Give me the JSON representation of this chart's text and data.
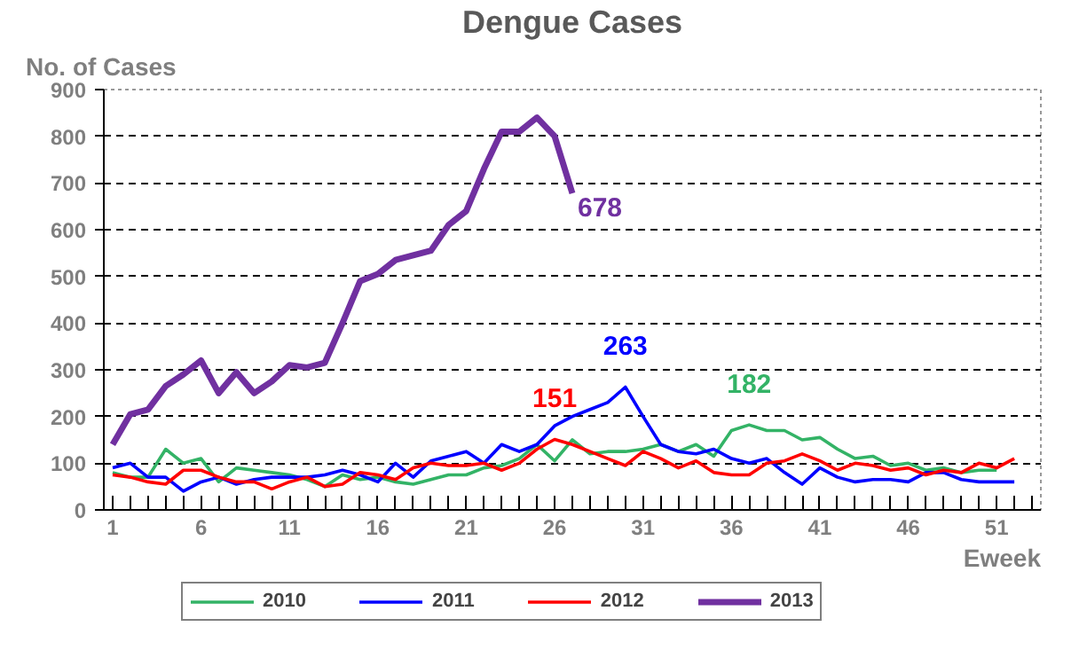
{
  "chart_data": {
    "type": "line",
    "title": "Dengue Cases",
    "ylabel": "No. of Cases",
    "xlabel": "Eweek",
    "x": [
      1,
      2,
      3,
      4,
      5,
      6,
      7,
      8,
      9,
      10,
      11,
      12,
      13,
      14,
      15,
      16,
      17,
      18,
      19,
      20,
      21,
      22,
      23,
      24,
      25,
      26,
      27,
      28,
      29,
      30,
      31,
      32,
      33,
      34,
      35,
      36,
      37,
      38,
      39,
      40,
      41,
      42,
      43,
      44,
      45,
      46,
      47,
      48,
      49,
      50,
      51,
      52
    ],
    "xlim": [
      0.5,
      53.5
    ],
    "xticks": [
      1,
      {
        "value": 2,
        "label": null
      },
      {
        "value": 3,
        "label": null
      },
      {
        "value": 4,
        "label": null
      },
      {
        "value": 5,
        "label": null
      },
      6,
      {
        "value": 7,
        "label": null
      },
      {
        "value": 8,
        "label": null
      },
      {
        "value": 9,
        "label": null
      },
      {
        "value": 10,
        "label": null
      },
      11,
      {
        "value": 12,
        "label": null
      },
      {
        "value": 13,
        "label": null
      },
      {
        "value": 14,
        "label": null
      },
      {
        "value": 15,
        "label": null
      },
      16,
      {
        "value": 17,
        "label": null
      },
      {
        "value": 18,
        "label": null
      },
      {
        "value": 19,
        "label": null
      },
      {
        "value": 20,
        "label": null
      },
      21,
      {
        "value": 22,
        "label": null
      },
      {
        "value": 23,
        "label": null
      },
      {
        "value": 24,
        "label": null
      },
      {
        "value": 25,
        "label": null
      },
      26,
      {
        "value": 27,
        "label": null
      },
      {
        "value": 28,
        "label": null
      },
      {
        "value": 29,
        "label": null
      },
      {
        "value": 30,
        "label": null
      },
      31,
      {
        "value": 32,
        "label": null
      },
      {
        "value": 33,
        "label": null
      },
      {
        "value": 34,
        "label": null
      },
      {
        "value": 35,
        "label": null
      },
      36,
      {
        "value": 37,
        "label": null
      },
      {
        "value": 38,
        "label": null
      },
      {
        "value": 39,
        "label": null
      },
      {
        "value": 40,
        "label": null
      },
      41,
      {
        "value": 42,
        "label": null
      },
      {
        "value": 43,
        "label": null
      },
      {
        "value": 44,
        "label": null
      },
      {
        "value": 45,
        "label": null
      },
      46,
      {
        "value": 47,
        "label": null
      },
      {
        "value": 48,
        "label": null
      },
      {
        "value": 49,
        "label": null
      },
      {
        "value": 50,
        "label": null
      },
      51,
      {
        "value": 52,
        "label": null
      },
      {
        "value": 53,
        "label": null
      }
    ],
    "ylim": [
      0,
      900
    ],
    "yticks": [
      0,
      100,
      200,
      300,
      400,
      500,
      600,
      700,
      800,
      900
    ],
    "grid": "y",
    "legend": "bottom",
    "line_style": "solid",
    "marker": "none",
    "series": [
      {
        "name": "2010",
        "color": "#33b366",
        "values": [
          80,
          70,
          70,
          130,
          100,
          110,
          60,
          90,
          85,
          80,
          75,
          65,
          50,
          75,
          65,
          70,
          60,
          55,
          65,
          75,
          75,
          90,
          95,
          110,
          140,
          105,
          150,
          120,
          125,
          125,
          130,
          140,
          125,
          140,
          115,
          170,
          182,
          170,
          170,
          150,
          155,
          130,
          110,
          115,
          95,
          100,
          85,
          90,
          80,
          85,
          85,
          null
        ],
        "value_labels": [
          null,
          null,
          null,
          null,
          null,
          null,
          null,
          null,
          null,
          null,
          null,
          null,
          null,
          null,
          null,
          null,
          null,
          null,
          null,
          null,
          null,
          null,
          null,
          null,
          null,
          null,
          null,
          null,
          null,
          null,
          null,
          null,
          null,
          null,
          null,
          null,
          "182",
          null,
          null,
          null,
          null,
          null,
          null,
          null,
          null,
          null,
          null,
          null,
          null,
          null,
          null,
          null
        ]
      },
      {
        "name": "2011",
        "color": "#0000ff",
        "values": [
          90,
          100,
          70,
          70,
          40,
          60,
          70,
          55,
          65,
          70,
          70,
          70,
          75,
          85,
          75,
          60,
          100,
          70,
          105,
          115,
          125,
          100,
          140,
          125,
          140,
          180,
          200,
          215,
          230,
          263,
          200,
          140,
          125,
          120,
          130,
          110,
          100,
          110,
          80,
          55,
          90,
          70,
          60,
          65,
          65,
          60,
          80,
          80,
          65,
          60,
          60,
          60
        ],
        "value_labels": [
          null,
          null,
          null,
          null,
          null,
          null,
          null,
          null,
          null,
          null,
          null,
          null,
          null,
          null,
          null,
          null,
          null,
          null,
          null,
          null,
          null,
          null,
          null,
          null,
          null,
          null,
          null,
          null,
          null,
          "263",
          null,
          null,
          null,
          null,
          null,
          null,
          null,
          null,
          null,
          null,
          null,
          null,
          null,
          null,
          null,
          null,
          null,
          null,
          null,
          null,
          null,
          null
        ]
      },
      {
        "name": "2012",
        "color": "#ff0000",
        "values": [
          75,
          70,
          60,
          55,
          85,
          85,
          70,
          60,
          60,
          45,
          60,
          70,
          50,
          55,
          80,
          75,
          65,
          90,
          100,
          95,
          95,
          100,
          85,
          100,
          130,
          151,
          140,
          125,
          110,
          95,
          125,
          110,
          90,
          105,
          80,
          75,
          75,
          100,
          105,
          120,
          105,
          85,
          100,
          95,
          85,
          90,
          75,
          85,
          80,
          100,
          90,
          110
        ],
        "value_labels": [
          null,
          null,
          null,
          null,
          null,
          null,
          null,
          null,
          null,
          null,
          null,
          null,
          null,
          null,
          null,
          null,
          null,
          null,
          null,
          null,
          null,
          null,
          null,
          null,
          null,
          "151",
          null,
          null,
          null,
          null,
          null,
          null,
          null,
          null,
          null,
          null,
          null,
          null,
          null,
          null,
          null,
          null,
          null,
          null,
          null,
          null,
          null,
          null,
          null,
          null,
          null,
          null
        ]
      },
      {
        "name": "2013",
        "color": "#7030a0",
        "values": [
          140,
          205,
          215,
          265,
          290,
          320,
          250,
          295,
          250,
          275,
          310,
          305,
          315,
          400,
          490,
          505,
          535,
          545,
          555,
          610,
          640,
          730,
          810,
          810,
          840,
          800,
          678,
          null,
          null,
          null,
          null,
          null,
          null,
          null,
          null,
          null,
          null,
          null,
          null,
          null,
          null,
          null,
          null,
          null,
          null,
          null,
          null,
          null,
          null,
          null,
          null,
          null
        ],
        "value_labels": [
          null,
          null,
          null,
          null,
          null,
          null,
          null,
          null,
          null,
          null,
          null,
          null,
          null,
          null,
          null,
          null,
          null,
          null,
          null,
          null,
          null,
          null,
          null,
          null,
          null,
          null,
          "678",
          null,
          null,
          null,
          null,
          null,
          null,
          null,
          null,
          null,
          null,
          null,
          null,
          null,
          null,
          null,
          null,
          null,
          null,
          null,
          null,
          null,
          null,
          null,
          null,
          null
        ]
      }
    ]
  }
}
